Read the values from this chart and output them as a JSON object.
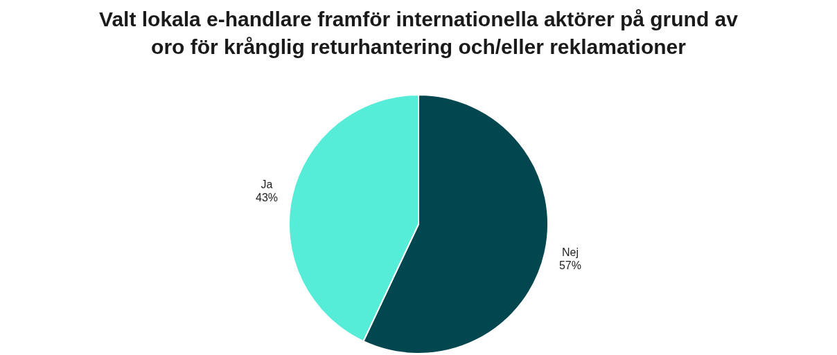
{
  "chart_data": {
    "type": "pie",
    "title": "Valt lokala e-handlare framför internationella aktörer på grund av oro för krånglig returhantering och/eller reklamationer",
    "categories": [
      "Nej",
      "Ja"
    ],
    "values": [
      57,
      43
    ],
    "colors": [
      "#02464f",
      "#55ecd8"
    ],
    "value_labels": [
      "57%",
      "43%"
    ]
  }
}
